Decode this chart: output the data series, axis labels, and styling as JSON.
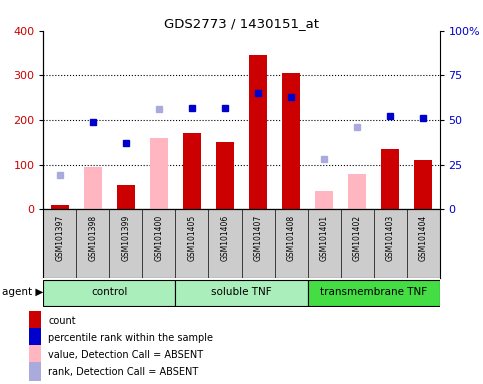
{
  "title": "GDS2773 / 1430151_at",
  "samples": [
    "GSM101397",
    "GSM101398",
    "GSM101399",
    "GSM101400",
    "GSM101405",
    "GSM101406",
    "GSM101407",
    "GSM101408",
    "GSM101401",
    "GSM101402",
    "GSM101403",
    "GSM101404"
  ],
  "count_values": [
    10,
    null,
    55,
    null,
    170,
    150,
    345,
    305,
    null,
    null,
    135,
    110
  ],
  "count_absent_values": [
    null,
    95,
    null,
    160,
    null,
    null,
    null,
    null,
    40,
    78,
    null,
    null
  ],
  "rank_values": [
    null,
    49,
    37,
    null,
    57,
    57,
    65,
    63,
    null,
    null,
    52,
    51
  ],
  "rank_absent_values": [
    19,
    null,
    null,
    56,
    null,
    null,
    null,
    null,
    28,
    46,
    null,
    null
  ],
  "ylim_left": [
    0,
    400
  ],
  "ylim_right": [
    0,
    100
  ],
  "left_ticks": [
    0,
    100,
    200,
    300,
    400
  ],
  "right_ticks": [
    0,
    25,
    50,
    75,
    100
  ],
  "right_tick_labels": [
    "0",
    "25",
    "50",
    "75",
    "100%"
  ],
  "left_color": "#CC0000",
  "right_color": "#0000CC",
  "bar_color_present": "#CC0000",
  "bar_color_absent": "#FFB6C1",
  "rank_color_present": "#0000CC",
  "rank_color_absent": "#AAAADD",
  "background_gray": "#CCCCCC",
  "background_green_light": "#99EE99",
  "background_green_dark": "#44DD44",
  "group_configs": [
    {
      "label": "control",
      "start": 0,
      "end": 4,
      "color": "#AAEEBB"
    },
    {
      "label": "soluble TNF",
      "start": 4,
      "end": 8,
      "color": "#AAEEBB"
    },
    {
      "label": "transmembrane TNF",
      "start": 8,
      "end": 12,
      "color": "#44DD44"
    }
  ],
  "legend": [
    {
      "color": "#CC0000",
      "label": "count"
    },
    {
      "color": "#0000CC",
      "label": "percentile rank within the sample"
    },
    {
      "color": "#FFB6C1",
      "label": "value, Detection Call = ABSENT"
    },
    {
      "color": "#AAAADD",
      "label": "rank, Detection Call = ABSENT"
    }
  ]
}
